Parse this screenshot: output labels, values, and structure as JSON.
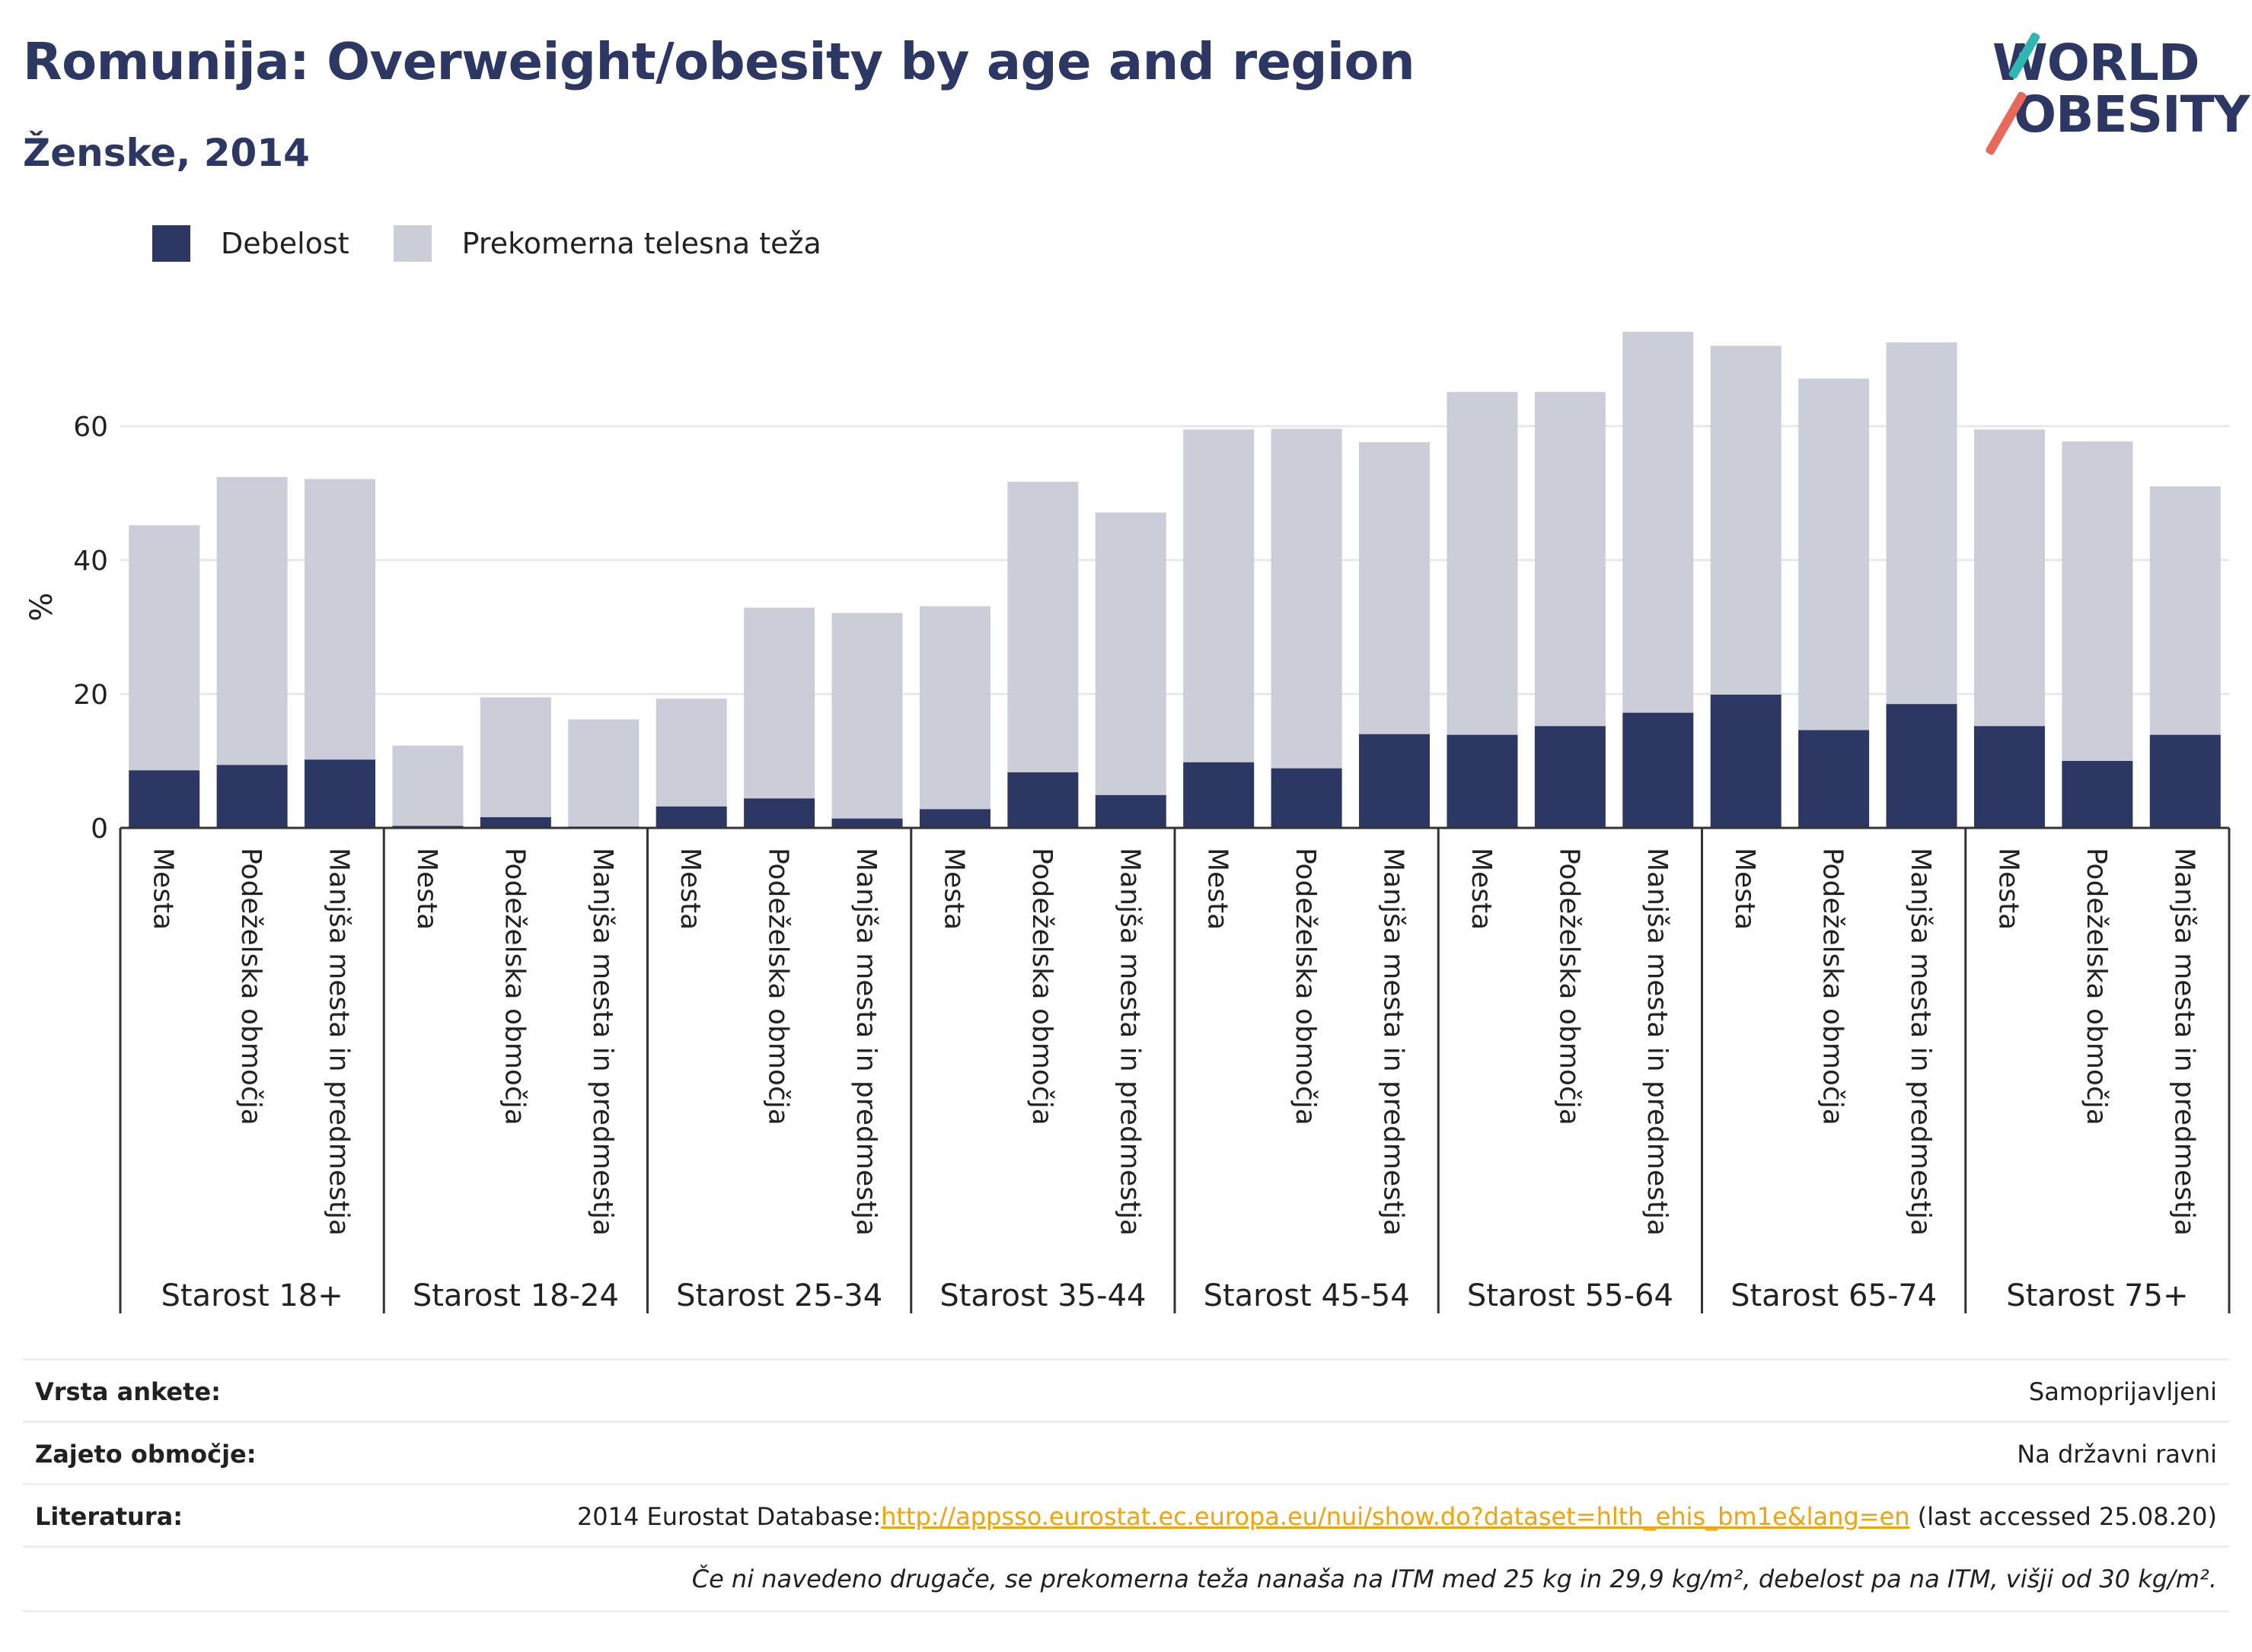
{
  "header": {
    "title": "Romunija: Overweight/obesity by age and region",
    "subtitle": "Ženske, 2014"
  },
  "logo": {
    "line1": "WORLD",
    "line2": "OBESITY"
  },
  "colors": {
    "obesity": "#2c3863",
    "overweight": "#cbcdd9",
    "axis": "#333333",
    "grid": "#e6e7ec"
  },
  "chart_data": {
    "type": "bar",
    "stacked": true,
    "ylabel": "%",
    "ylim": [
      0,
      75
    ],
    "yticks": [
      0,
      20,
      40,
      60
    ],
    "grid": true,
    "legend_position": "top-left",
    "subcategories": [
      "Mesta",
      "Podeželska območja",
      "Manjša mesta in predmestja"
    ],
    "groups": [
      "Starost 18+",
      "Starost 18-24",
      "Starost 25-34",
      "Starost 35-44",
      "Starost 45-54",
      "Starost 55-64",
      "Starost 65-74",
      "Starost 75+"
    ],
    "series": [
      {
        "name": "Debelost",
        "color": "#2c3863",
        "values": [
          8.6,
          9.4,
          10.2,
          0.3,
          1.6,
          0.2,
          3.2,
          4.4,
          1.4,
          2.8,
          8.3,
          4.9,
          9.8,
          8.9,
          14.0,
          13.9,
          15.2,
          17.2,
          19.9,
          14.6,
          18.5,
          15.2,
          10.0,
          13.9
        ]
      },
      {
        "name": "Prekomerna telesna teža",
        "color": "#cbcdd9",
        "values": [
          36.6,
          43.0,
          41.9,
          12.0,
          17.9,
          16.0,
          16.1,
          28.5,
          30.7,
          30.3,
          43.4,
          42.2,
          49.7,
          50.7,
          43.6,
          51.2,
          49.9,
          56.9,
          52.1,
          52.5,
          54.0,
          44.3,
          47.7,
          37.1
        ]
      }
    ]
  },
  "info": [
    {
      "label": "Vrsta ankete:",
      "value": "Samoprijavljeni"
    },
    {
      "label": "Zajeto območje:",
      "value": "Na državni ravni"
    },
    {
      "label": "Literatura:",
      "prefix": "2014 Eurostat Database:",
      "link": "http://appsso.eurostat.ec.europa.eu/nui/show.do?dataset=hlth_ehis_bm1e&lang=en",
      "suffix": " (last accessed 25.08.20)"
    }
  ],
  "footnote": "Če ni navedeno drugače, se prekomerna teža nanaša na ITM med 25 kg in 29,9 kg/m², debelost pa na ITM, višji od 30 kg/m²."
}
